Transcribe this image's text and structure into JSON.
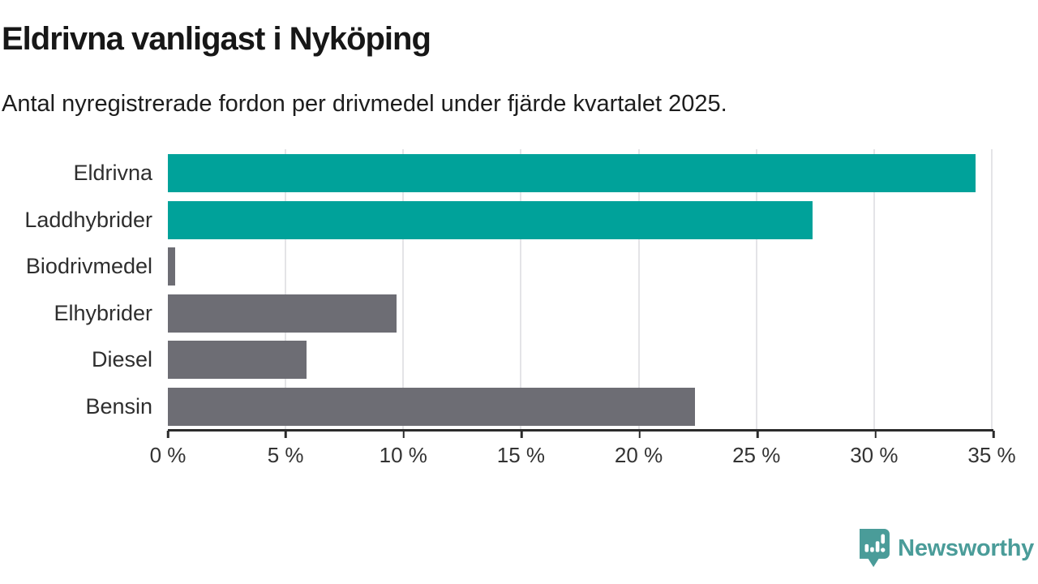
{
  "title": "Eldrivna vanligast i Nyköping",
  "subtitle": "Antal nyregistrerade fordon per drivmedel under fjärde kvartalet 2025.",
  "chart_data": {
    "type": "bar",
    "orientation": "horizontal",
    "title": "Eldrivna vanligast i Nyköping",
    "subtitle": "Antal nyregistrerade fordon per drivmedel under fjärde kvartalet 2025.",
    "categories": [
      "Eldrivna",
      "Laddhybrider",
      "Biodrivmedel",
      "Elhybrider",
      "Diesel",
      "Bensin"
    ],
    "values": [
      34.3,
      27.4,
      0.3,
      9.7,
      5.9,
      22.4
    ],
    "unit": "%",
    "xlim": [
      0,
      35
    ],
    "x_tick_values": [
      0,
      5,
      10,
      15,
      20,
      25,
      30,
      35
    ],
    "x_tick_labels": [
      "0 %",
      "5 %",
      "10 %",
      "15 %",
      "20 %",
      "25 %",
      "30 %",
      "35 %"
    ],
    "grid": "vertical-on",
    "legend": "none",
    "bar_colors": [
      "#00a29a",
      "#00a29a",
      "#6d6d74",
      "#6d6d74",
      "#6d6d74",
      "#6d6d74"
    ],
    "highlight_color": "#00a29a",
    "default_color": "#6d6d74"
  },
  "colors": {
    "title_text": "#171717",
    "subtitle_text": "#1d1d1d",
    "axis_text": "#333333",
    "axis_line": "#2b2b2b",
    "gridline": "#e4e4e7",
    "logo_teal": "#4a9c99",
    "background": "#ffffff"
  },
  "branding": {
    "logo_text": "Newsworthy",
    "logo_icon": "bar-chart-speech-bubble-icon"
  }
}
